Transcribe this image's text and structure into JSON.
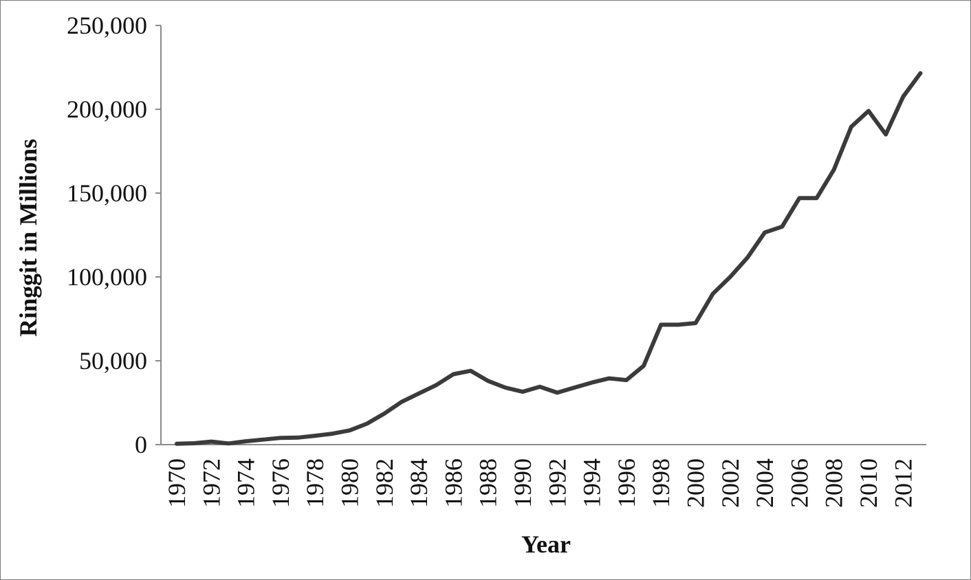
{
  "chart_data": {
    "type": "line",
    "title": "",
    "xlabel": "Year",
    "ylabel": "Ringgit in Millions",
    "x": [
      1970,
      1971,
      1972,
      1973,
      1974,
      1975,
      1976,
      1977,
      1978,
      1979,
      1980,
      1981,
      1982,
      1983,
      1984,
      1985,
      1986,
      1987,
      1988,
      1989,
      1990,
      1991,
      1992,
      1993,
      1994,
      1995,
      1996,
      1997,
      1998,
      1999,
      2000,
      2001,
      2002,
      2003,
      2004,
      2005,
      2006,
      2007,
      2008,
      2009,
      2010,
      2011,
      2012,
      2013
    ],
    "series": [
      {
        "values": [
          500,
          800,
          1800,
          700,
          2000,
          3000,
          4000,
          4200,
          5300,
          6500,
          8500,
          12500,
          18500,
          25500,
          30500,
          35500,
          42000,
          44000,
          38000,
          34000,
          31500,
          34500,
          31000,
          34000,
          37000,
          39500,
          38500,
          47000,
          71500,
          71500,
          72500,
          90000,
          100000,
          111500,
          126500,
          130000,
          147000,
          147000,
          164000,
          189500,
          199000,
          185000,
          207500,
          221500
        ],
        "color": "#3b3b3b"
      }
    ],
    "xticks": [
      "1970",
      "1972",
      "1974",
      "1976",
      "1978",
      "1980",
      "1982",
      "1984",
      "1986",
      "1988",
      "1990",
      "1992",
      "1994",
      "1996",
      "1998",
      "2000",
      "2002",
      "2004",
      "2006",
      "2008",
      "2010",
      "2012"
    ],
    "yticks": [
      "0",
      "50,000",
      "100,000",
      "150,000",
      "200,000",
      "250,000"
    ],
    "ylim": [
      0,
      250000
    ],
    "grid": false,
    "legend": "none"
  }
}
